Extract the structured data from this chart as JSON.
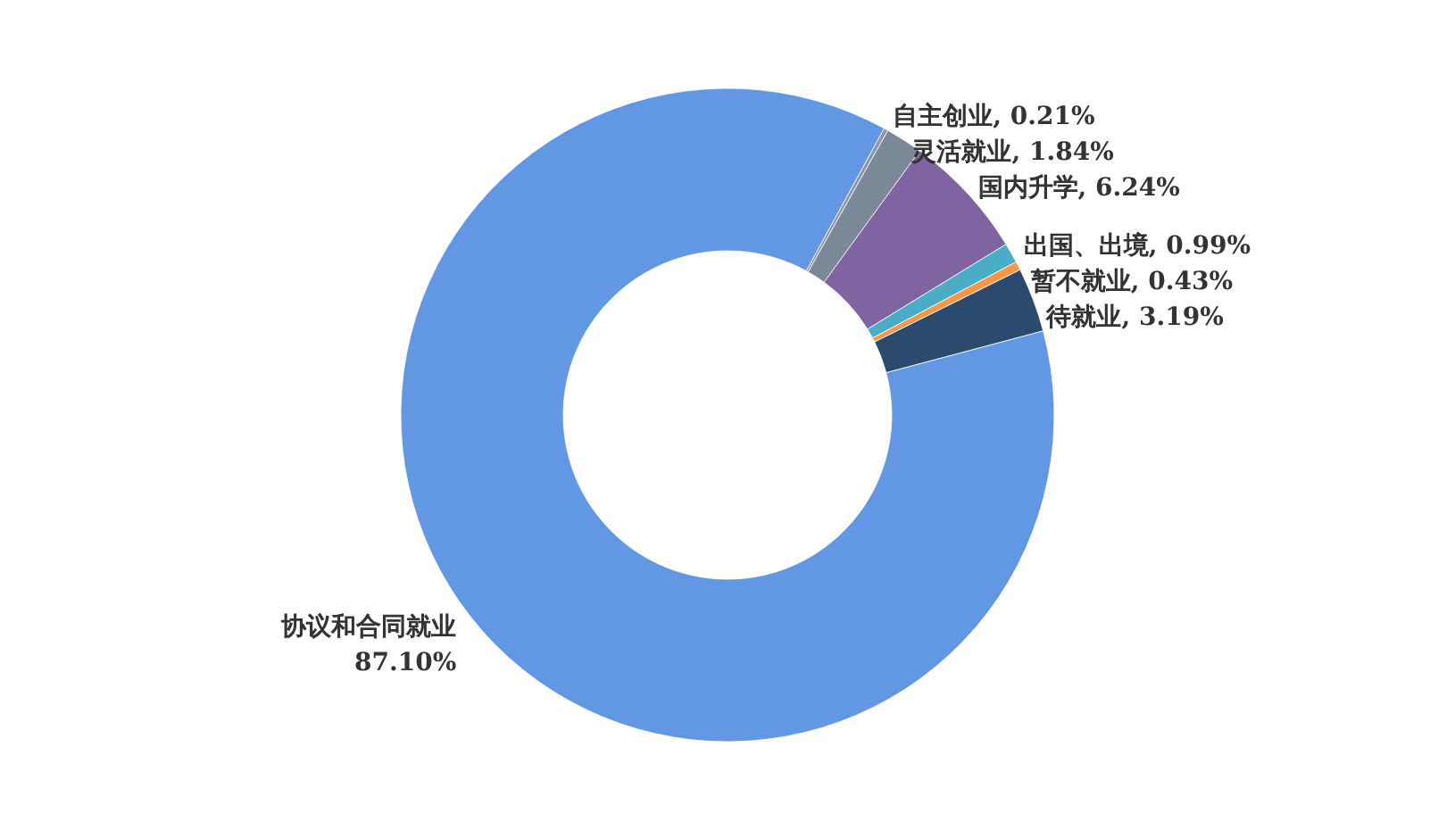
{
  "chart_data": {
    "type": "donut",
    "categories": [
      "自主创业",
      "灵活就业",
      "国内升学",
      "出国、出境",
      "暂不就业",
      "待就业",
      "协议和合同就业"
    ],
    "values": [
      0.21,
      1.84,
      6.24,
      0.99,
      0.43,
      3.19,
      87.1
    ],
    "colors": [
      "#8a96a6",
      "#7a8898",
      "#8064a2",
      "#4bacc6",
      "#f79646",
      "#2c4a6e",
      "#6297e3"
    ],
    "value_labels": [
      "0.21%",
      "1.84%",
      "6.24%",
      "0.99%",
      "0.43%",
      "3.19%",
      "87.10%"
    ]
  }
}
